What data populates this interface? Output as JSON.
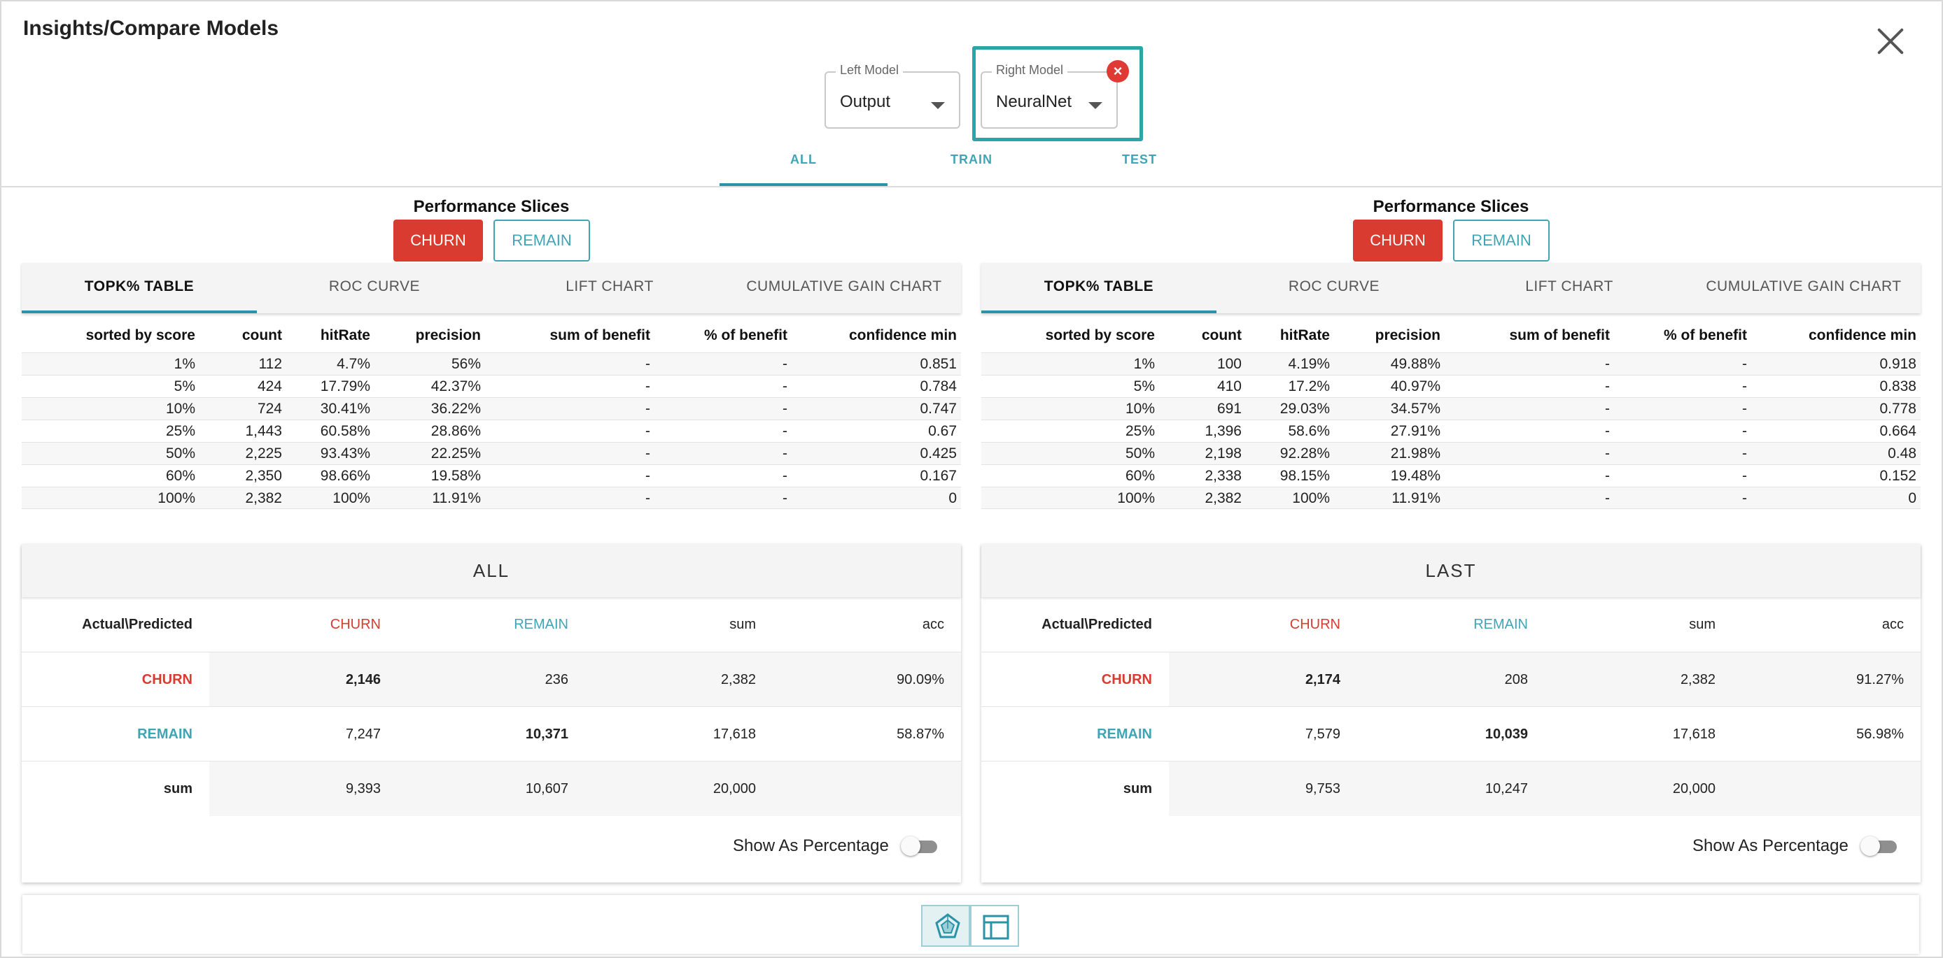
{
  "title": "Insights/Compare Models",
  "left_model": {
    "legend": "Left Model",
    "value": "Output"
  },
  "right_model": {
    "legend": "Right Model",
    "value": "NeuralNet",
    "clear": "×"
  },
  "top_tabs": [
    "ALL",
    "TRAIN",
    "TEST"
  ],
  "panels": [
    {
      "perf_title": "Performance Slices",
      "slice_churn": "CHURN",
      "slice_remain": "REMAIN",
      "sub_tabs": [
        "TOPK% TABLE",
        "ROC CURVE",
        "LIFT CHART",
        "CUMULATIVE GAIN CHART"
      ],
      "topk_headers": [
        "sorted by score",
        "count",
        "hitRate",
        "precision",
        "sum of benefit",
        "% of benefit",
        "confidence min"
      ],
      "topk_rows": [
        [
          "1%",
          "112",
          "4.7%",
          "56%",
          "-",
          "-",
          "0.851"
        ],
        [
          "5%",
          "424",
          "17.79%",
          "42.37%",
          "-",
          "-",
          "0.784"
        ],
        [
          "10%",
          "724",
          "30.41%",
          "36.22%",
          "-",
          "-",
          "0.747"
        ],
        [
          "25%",
          "1,443",
          "60.58%",
          "28.86%",
          "-",
          "-",
          "0.67"
        ],
        [
          "50%",
          "2,225",
          "93.43%",
          "22.25%",
          "-",
          "-",
          "0.425"
        ],
        [
          "60%",
          "2,350",
          "98.66%",
          "19.58%",
          "-",
          "-",
          "0.167"
        ],
        [
          "100%",
          "2,382",
          "100%",
          "11.91%",
          "-",
          "-",
          "0"
        ]
      ],
      "cm_title": "ALL",
      "cm_headers": [
        "Actual\\Predicted",
        "CHURN",
        "REMAIN",
        "sum",
        "acc"
      ],
      "cm_rows": [
        [
          "CHURN",
          "2,146",
          "236",
          "2,382",
          "90.09%"
        ],
        [
          "REMAIN",
          "7,247",
          "10,371",
          "17,618",
          "58.87%"
        ],
        [
          "sum",
          "9,393",
          "10,607",
          "20,000",
          ""
        ]
      ],
      "show_pct": "Show As Percentage"
    },
    {
      "perf_title": "Performance Slices",
      "slice_churn": "CHURN",
      "slice_remain": "REMAIN",
      "sub_tabs": [
        "TOPK% TABLE",
        "ROC CURVE",
        "LIFT CHART",
        "CUMULATIVE GAIN CHART"
      ],
      "topk_headers": [
        "sorted by score",
        "count",
        "hitRate",
        "precision",
        "sum of benefit",
        "% of benefit",
        "confidence min"
      ],
      "topk_rows": [
        [
          "1%",
          "100",
          "4.19%",
          "49.88%",
          "-",
          "-",
          "0.918"
        ],
        [
          "5%",
          "410",
          "17.2%",
          "40.97%",
          "-",
          "-",
          "0.838"
        ],
        [
          "10%",
          "691",
          "29.03%",
          "34.57%",
          "-",
          "-",
          "0.778"
        ],
        [
          "25%",
          "1,396",
          "58.6%",
          "27.91%",
          "-",
          "-",
          "0.664"
        ],
        [
          "50%",
          "2,198",
          "92.28%",
          "21.98%",
          "-",
          "-",
          "0.48"
        ],
        [
          "60%",
          "2,338",
          "98.15%",
          "19.48%",
          "-",
          "-",
          "0.152"
        ],
        [
          "100%",
          "2,382",
          "100%",
          "11.91%",
          "-",
          "-",
          "0"
        ]
      ],
      "cm_title": "LAST",
      "cm_headers": [
        "Actual\\Predicted",
        "CHURN",
        "REMAIN",
        "sum",
        "acc"
      ],
      "cm_rows": [
        [
          "CHURN",
          "2,174",
          "208",
          "2,382",
          "91.27%"
        ],
        [
          "REMAIN",
          "7,579",
          "10,039",
          "17,618",
          "56.98%"
        ],
        [
          "sum",
          "9,753",
          "10,247",
          "20,000",
          ""
        ]
      ],
      "show_pct": "Show As Percentage"
    }
  ],
  "bottom_bar": {
    "icons": [
      "radar-chart-icon",
      "table-layout-icon"
    ]
  }
}
